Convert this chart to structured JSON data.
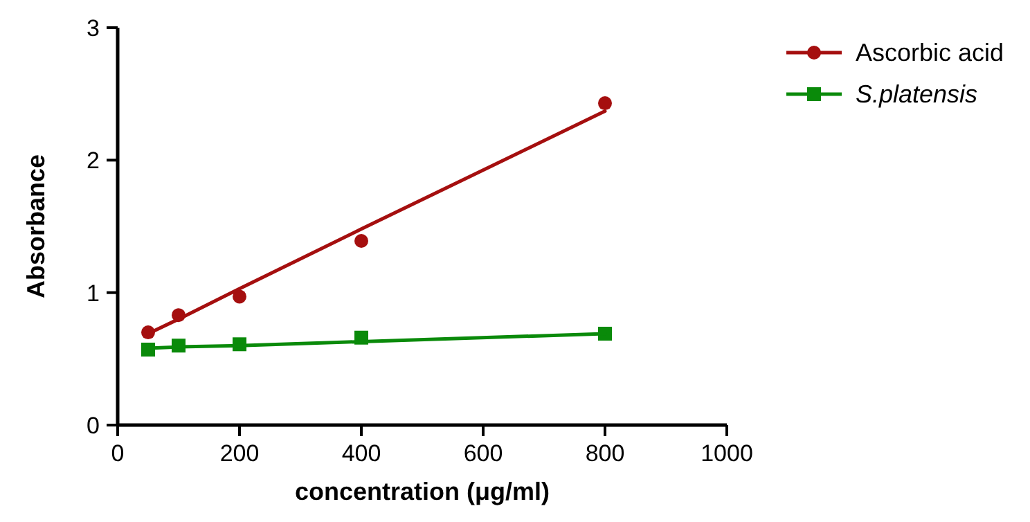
{
  "chart_data": {
    "type": "scatter",
    "xlabel": "concentration (μg/ml)",
    "ylabel": "Absorbance",
    "xlim": [
      0,
      1000
    ],
    "xticks": [
      0,
      200,
      400,
      600,
      800,
      1000
    ],
    "ylim": [
      0,
      3
    ],
    "yticks": [
      0,
      1,
      2,
      3
    ],
    "grid": false,
    "legend": "top right",
    "x": [
      50,
      100,
      200,
      400,
      800
    ],
    "series": [
      {
        "name": "Ascorbic acid",
        "color": "#a50f0f",
        "marker": "circle",
        "values": [
          0.7,
          0.83,
          0.97,
          1.39,
          2.43
        ]
      },
      {
        "name": "S.platensis",
        "color": "#0a8a0a",
        "marker": "square",
        "values": [
          0.57,
          0.6,
          0.61,
          0.66,
          0.69
        ]
      },
      {
        "type": "line",
        "color": "#a50f0f",
        "marker": "none",
        "values": [
          0.69,
          0.8,
          1.03,
          1.48,
          2.37
        ]
      },
      {
        "type": "line",
        "color": "#0a8a0a",
        "marker": "none",
        "values": [
          0.58,
          0.59,
          0.6,
          0.63,
          0.69
        ]
      }
    ]
  }
}
